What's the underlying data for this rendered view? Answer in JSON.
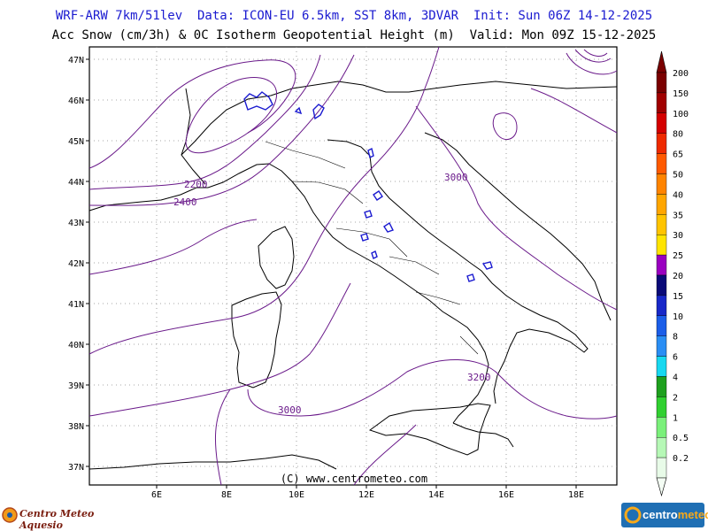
{
  "header": {
    "line1": "WRF-ARW 7km/51lev  Data: ICON-EU 6.5km, SST 8km, 3DVAR  Init: Sun 06Z 14-12-2025",
    "line2": "Acc Snow (cm/3h) & 0C Isotherm Geopotential Height (m)  Valid: Mon 09Z 15-12-2025"
  },
  "map": {
    "lat_labels": [
      "47N",
      "46N",
      "45N",
      "44N",
      "43N",
      "42N",
      "41N",
      "40N",
      "39N",
      "38N",
      "37N"
    ],
    "lon_labels": [
      "6E",
      "8E",
      "10E",
      "12E",
      "14E",
      "16E",
      "18E"
    ],
    "contour_labels": [
      "2200",
      "2400",
      "3000",
      "3200",
      "3000"
    ],
    "credit": "(C) www.centrometeo.com",
    "colors": {
      "contour": "#6a1a8a",
      "coast": "#000000",
      "snow": "#1a1ad0",
      "grid": "#777777"
    }
  },
  "legend": {
    "levels": [
      "200",
      "150",
      "100",
      "80",
      "65",
      "50",
      "40",
      "35",
      "30",
      "25",
      "20",
      "15",
      "10",
      "8",
      "6",
      "4",
      "2",
      "1",
      "0.5",
      "0.2"
    ],
    "colors": [
      "#7a0000",
      "#a00000",
      "#d40000",
      "#ee2a00",
      "#ff5a00",
      "#ff8400",
      "#ffa600",
      "#ffc400",
      "#ffe400",
      "#9a00c0",
      "#0a0a78",
      "#1828c8",
      "#1c5ee8",
      "#2a8ef4",
      "#18d8f0",
      "#1ea01e",
      "#30d030",
      "#7af07a",
      "#b6f8b6",
      "#e8fbe8"
    ]
  },
  "logos": {
    "left": "Centro Meteo Aquesio",
    "right_a": "centro",
    "right_b": "meteo"
  }
}
